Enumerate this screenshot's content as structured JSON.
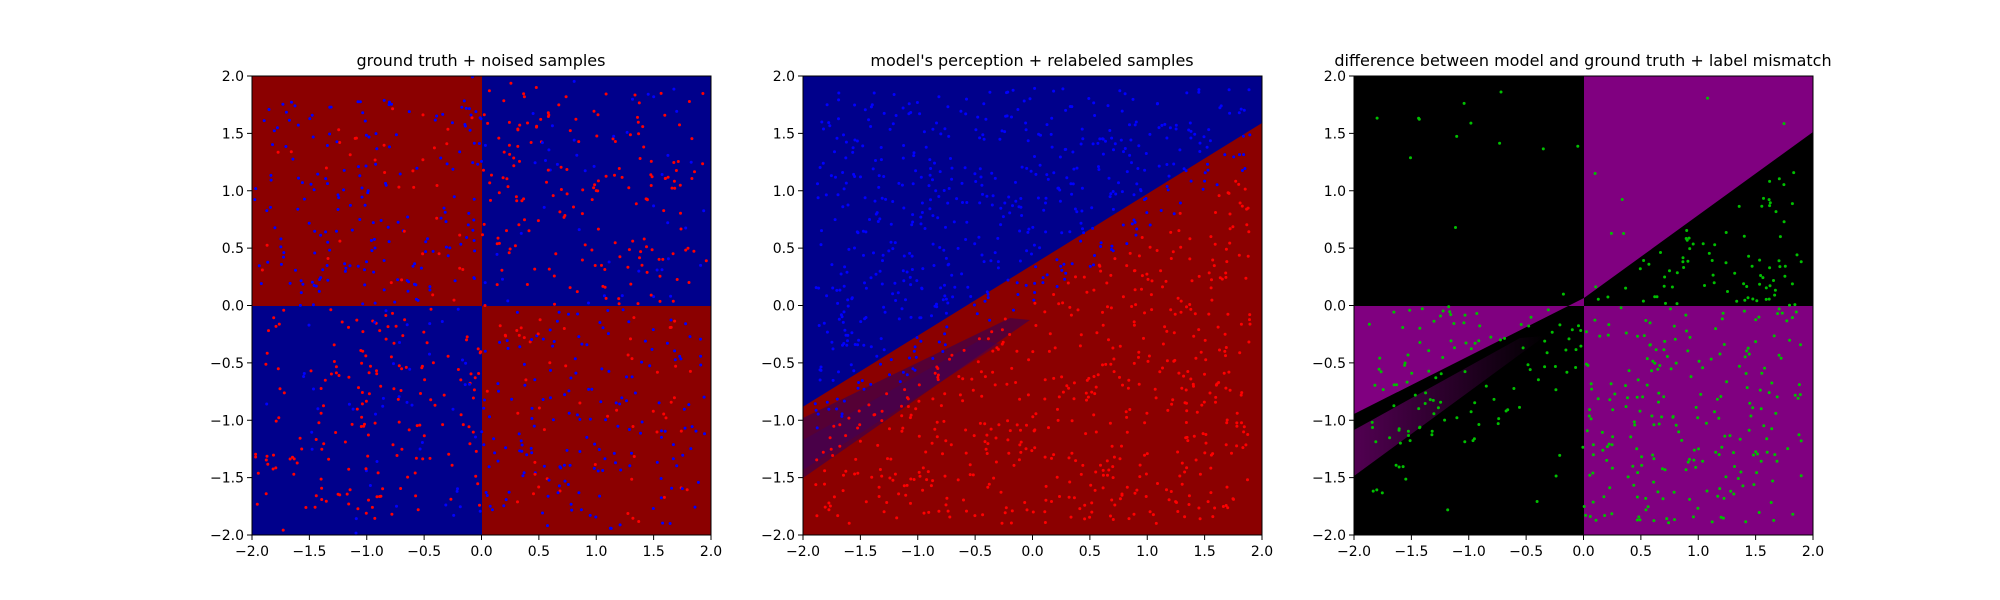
{
  "chart_data": [
    {
      "type": "scatter",
      "title": "ground truth + noised samples",
      "background": "ground-truth quadrant map: red where x*y>0, blue where x*y<0",
      "xlim": [
        -2.0,
        2.0
      ],
      "ylim": [
        -2.0,
        2.0
      ],
      "xticks": [
        "−2.0",
        "−1.5",
        "−1.0",
        "−0.5",
        "0.0",
        "0.5",
        "1.0",
        "1.5",
        "2.0"
      ],
      "yticks": [
        "−2.0",
        "−1.5",
        "−1.0",
        "−0.5",
        "0.0",
        "0.5",
        "1.0",
        "1.5",
        "2.0"
      ],
      "grid": false,
      "series": [
        {
          "color": "#ff0000",
          "marker_size": 2,
          "n": 420,
          "distribution": "label red where x*y>0, with label noise"
        },
        {
          "color": "#0000ff",
          "marker_size": 2,
          "n": 420,
          "distribution": "label blue where x*y<0, with label noise"
        }
      ]
    },
    {
      "type": "scatter",
      "title": "model's perception + relabeled samples",
      "background": "model decision map: blue above line y≈0.6x, red below, with fuzzy secondary band",
      "xlim": [
        -2.0,
        2.0
      ],
      "ylim": [
        -2.0,
        2.0
      ],
      "xticks": [
        "−2.0",
        "−1.5",
        "−1.0",
        "−0.5",
        "0.0",
        "0.5",
        "1.0",
        "1.5",
        "2.0"
      ],
      "yticks": [
        "−2.0",
        "−1.5",
        "−1.0",
        "−0.5",
        "0.0",
        "0.5",
        "1.0",
        "1.5",
        "2.0"
      ],
      "grid": false,
      "decision_boundary": {
        "slope": 0.61,
        "intercept": 0.28
      },
      "series": [
        {
          "color": "#0000ff",
          "marker_size": 2,
          "n": 600,
          "distribution": "points above boundary"
        },
        {
          "color": "#ff0000",
          "marker_size": 2,
          "n": 600,
          "distribution": "points below boundary"
        }
      ]
    },
    {
      "type": "scatter",
      "title": "difference between model and ground truth + label mismatch",
      "background": "purple where model and ground truth disagree, black where they agree",
      "xlim": [
        -2.0,
        2.0
      ],
      "ylim": [
        -2.0,
        2.0
      ],
      "xticks": [
        "−2.0",
        "−1.5",
        "−1.0",
        "−0.5",
        "0.0",
        "0.5",
        "1.0",
        "1.5",
        "2.0"
      ],
      "yticks": [
        "−2.0",
        "−1.5",
        "−1.0",
        "−0.5",
        "0.0",
        "0.5",
        "1.0",
        "1.5",
        "2.0"
      ],
      "grid": false,
      "series": [
        {
          "color": "#00c000",
          "marker_size": 2,
          "n": 450,
          "distribution": "mismatched labels, mostly in disagreement regions"
        }
      ]
    }
  ],
  "colors": {
    "dark_red": "#8b0000",
    "dark_blue": "#00008b",
    "red_point": "#ff0000",
    "blue_point": "#0000ff",
    "purple": "#800080",
    "black": "#000000",
    "green_point": "#00c000"
  }
}
